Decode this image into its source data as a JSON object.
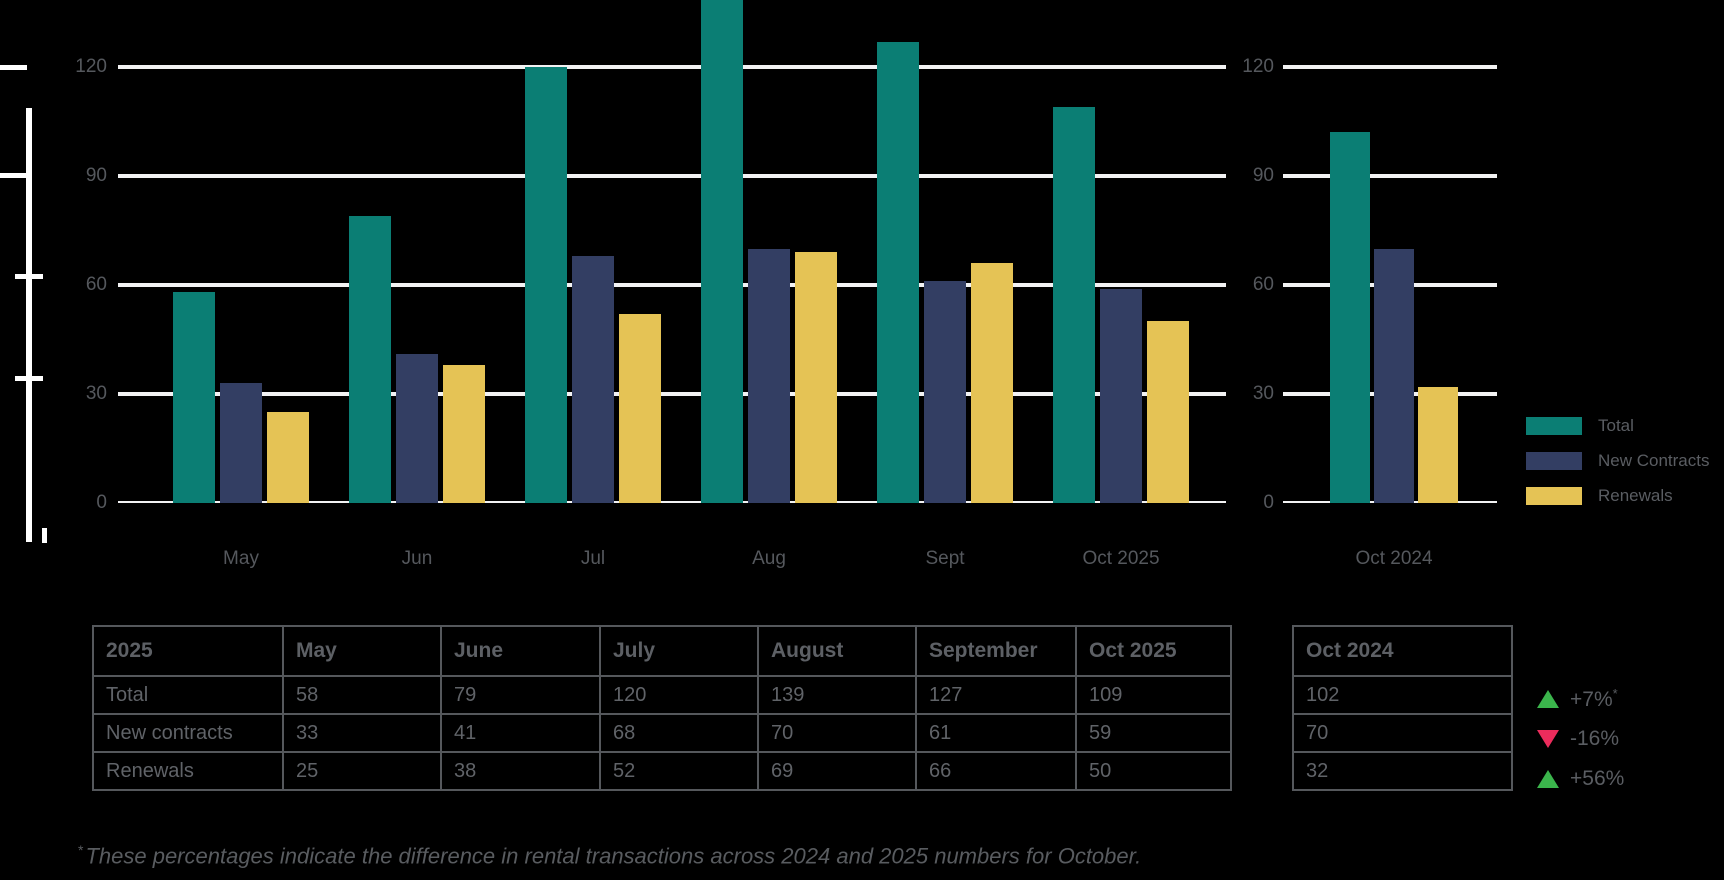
{
  "colors": {
    "teal": "#0b7e74",
    "navy": "#333e63",
    "yellow": "#e5c355",
    "green": "#3bb54c",
    "red": "#ec2c5c",
    "grid": "#f2f2f3",
    "text_gray": "#5a5d62",
    "border_gray": "#55585c",
    "decor_white": "#ffffff"
  },
  "chart_data": {
    "type": "bar",
    "grid": true,
    "ylim": [
      0,
      120
    ],
    "y_ticks": [
      0,
      30,
      60,
      90,
      120
    ],
    "categories": [
      "May",
      "Jun",
      "Jul",
      "Aug",
      "Sept",
      "Oct 2025"
    ],
    "series": [
      {
        "name": "Total",
        "color_key": "teal",
        "values": [
          58,
          79,
          120,
          139,
          127,
          109
        ]
      },
      {
        "name": "New Contracts",
        "color_key": "navy",
        "values": [
          33,
          41,
          68,
          70,
          61,
          59
        ]
      },
      {
        "name": "Renewals",
        "color_key": "yellow",
        "values": [
          25,
          38,
          52,
          69,
          66,
          50
        ]
      }
    ],
    "comparison_chart": {
      "category": "Oct 2024",
      "y_ticks": [
        0,
        30,
        60,
        90,
        120
      ],
      "values": [
        102,
        70,
        32
      ]
    },
    "legend_position": "right",
    "legend": [
      "Total",
      "New Contracts",
      "Renewals"
    ]
  },
  "tables": {
    "main": {
      "header": [
        "2025",
        "May",
        "June",
        "July",
        "August",
        "September",
        "Oct 2025"
      ],
      "rows": [
        [
          "Total",
          "58",
          "79",
          "120",
          "139",
          "127",
          "109"
        ],
        [
          "New contracts",
          "33",
          "41",
          "68",
          "70",
          "61",
          "59"
        ],
        [
          "Renewals",
          "25",
          "38",
          "52",
          "69",
          "66",
          "50"
        ]
      ]
    },
    "comparison": {
      "header": [
        "Oct 2024"
      ],
      "rows": [
        [
          "102"
        ],
        [
          "70"
        ],
        [
          "32"
        ]
      ]
    }
  },
  "indicators": [
    {
      "direction": "up",
      "value": "+7%",
      "superscript": "*",
      "color_key": "green"
    },
    {
      "direction": "down",
      "value": "-16%",
      "superscript": "",
      "color_key": "red"
    },
    {
      "direction": "up",
      "value": "+56%",
      "superscript": "",
      "color_key": "green"
    }
  ],
  "footnote": {
    "superscript": "*",
    "text": "These percentages indicate the difference in rental transactions across 2024 and 2025 numbers for October."
  }
}
